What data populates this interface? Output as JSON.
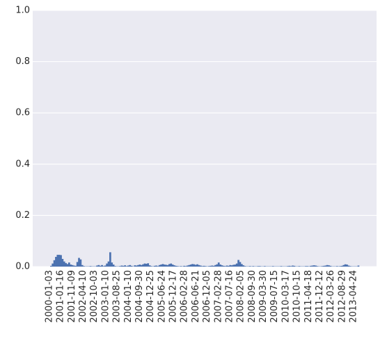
{
  "chart_data": {
    "type": "bar",
    "ylim": [
      0,
      1.0
    ],
    "y_ticks": [
      "0.0",
      "0.2",
      "0.4",
      "0.6",
      "0.8",
      "1.0"
    ],
    "y_tick_values": [
      0.0,
      0.2,
      0.4,
      0.6,
      0.8,
      1.0
    ],
    "x_tick_labels": [
      "2000-01-03",
      "2001-01-16",
      "2001-11-09",
      "2002-04-10",
      "2002-10-03",
      "2003-01-10",
      "2003-08-25",
      "2004-01-10",
      "2004-09-30",
      "2004-12-25",
      "2005-06-24",
      "2005-12-17",
      "2006-02-28",
      "2006-06-21",
      "2006-12-05",
      "2007-02-28",
      "2007-07-16",
      "2008-02-05",
      "2008-09-30",
      "2009-03-30",
      "2009-07-15",
      "2010-03-17",
      "2010-10-15",
      "2011-04-18",
      "2011-12-12",
      "2012-03-26",
      "2012-08-29",
      "2013-04-24"
    ],
    "grid": true,
    "background_color": "#eaeaf2",
    "bar_color": "#4c72b0",
    "series": [
      {
        "values": [
          0.003,
          0.012,
          0.025,
          0.038,
          0.046,
          0.046,
          0.045,
          0.03,
          0.02,
          0.014,
          0.01,
          0.016,
          0.008,
          0.006,
          0.004,
          0.003,
          0.018,
          0.034,
          0.028,
          0.006,
          0.002,
          0.001,
          0.001,
          0.001,
          0.002,
          0.001,
          0.001,
          0.001,
          0.004,
          0.006,
          0.003,
          0.006,
          0.002,
          0.004,
          0.012,
          0.02,
          0.056,
          0.016,
          0.008,
          0.002,
          0.001,
          0.001,
          0.002,
          0.004,
          0.003,
          0.005,
          0.002,
          0.004,
          0.006,
          0.003,
          0.001,
          0.005,
          0.004,
          0.006,
          0.008,
          0.006,
          0.009,
          0.012,
          0.011,
          0.013,
          0.005,
          0.002,
          0.001,
          0.003,
          0.004,
          0.002,
          0.006,
          0.008,
          0.01,
          0.008,
          0.007,
          0.006,
          0.01,
          0.012,
          0.008,
          0.005,
          0.003,
          0.002,
          0.001,
          0.002,
          0.001,
          0.003,
          0.002,
          0.004,
          0.006,
          0.008,
          0.01,
          0.009,
          0.007,
          0.009,
          0.006,
          0.004,
          0.002,
          0.003,
          0.002,
          0.001,
          0.002,
          0.003,
          0.004,
          0.003,
          0.006,
          0.009,
          0.016,
          0.008,
          0.005,
          0.003,
          0.002,
          0.004,
          0.003,
          0.006,
          0.005,
          0.007,
          0.008,
          0.012,
          0.026,
          0.018,
          0.01,
          0.005,
          0.002,
          0.001,
          0.001,
          0.002,
          0.001,
          0.002,
          0.001,
          0.001,
          0.002,
          0.002,
          0.001,
          0.001,
          0.002,
          0.001,
          0.001,
          0.001,
          0.001,
          0.002,
          0.001,
          0.001,
          0.001,
          0.001,
          0.002,
          0.001,
          0.001,
          0.001,
          0.002,
          0.003,
          0.002,
          0.004,
          0.003,
          0.001,
          0.001,
          0.002,
          0.001,
          0.001,
          0.001,
          0.002,
          0.002,
          0.001,
          0.003,
          0.004,
          0.005,
          0.004,
          0.002,
          0.001,
          0.001,
          0.002,
          0.003,
          0.004,
          0.006,
          0.005,
          0.003,
          0.001,
          0.001,
          0.001,
          0.002,
          0.001,
          0.002,
          0.003,
          0.006,
          0.009,
          0.008,
          0.004,
          0.002,
          0.001,
          0.001,
          0.001,
          0.001,
          0.004
        ]
      }
    ]
  }
}
